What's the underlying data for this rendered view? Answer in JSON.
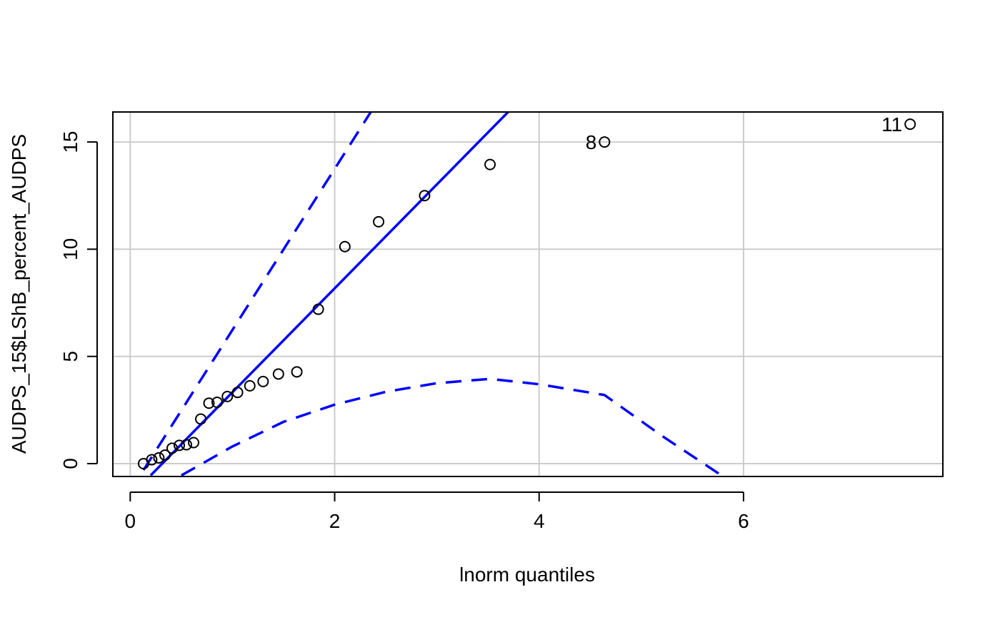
{
  "chart_data": {
    "type": "scatter",
    "title": "",
    "xlabel": "lnorm quantiles",
    "ylabel": "AUDPS_15$LShB_percent_AUDPS",
    "xlim": [
      -0.17,
      7.95
    ],
    "ylim": [
      -0.6,
      16.4
    ],
    "x_ticks": [
      0,
      2,
      4,
      6
    ],
    "y_ticks": [
      0,
      5,
      10,
      15
    ],
    "x_tick_labels": [
      "0",
      "2",
      "4",
      "6"
    ],
    "y_tick_labels": [
      "0",
      "5",
      "10",
      "15"
    ],
    "grid": true,
    "points": [
      {
        "x": 0.13,
        "y": 0.0
      },
      {
        "x": 0.21,
        "y": 0.18
      },
      {
        "x": 0.28,
        "y": 0.27
      },
      {
        "x": 0.34,
        "y": 0.4
      },
      {
        "x": 0.41,
        "y": 0.72
      },
      {
        "x": 0.48,
        "y": 0.85
      },
      {
        "x": 0.55,
        "y": 0.88
      },
      {
        "x": 0.62,
        "y": 0.98
      },
      {
        "x": 0.69,
        "y": 2.08
      },
      {
        "x": 0.77,
        "y": 2.82
      },
      {
        "x": 0.85,
        "y": 2.86
      },
      {
        "x": 0.95,
        "y": 3.13
      },
      {
        "x": 1.05,
        "y": 3.32
      },
      {
        "x": 1.17,
        "y": 3.63
      },
      {
        "x": 1.3,
        "y": 3.83
      },
      {
        "x": 1.45,
        "y": 4.18
      },
      {
        "x": 1.63,
        "y": 4.28
      },
      {
        "x": 1.84,
        "y": 7.2
      },
      {
        "x": 2.1,
        "y": 10.12
      },
      {
        "x": 2.43,
        "y": 11.28
      },
      {
        "x": 2.88,
        "y": 12.5
      },
      {
        "x": 3.52,
        "y": 13.95
      },
      {
        "x": 4.64,
        "y": 15.0,
        "label": "8"
      },
      {
        "x": 7.63,
        "y": 15.83,
        "label": "11"
      }
    ],
    "reference_line": {
      "color": "#0000ff",
      "style": "solid",
      "x": [
        0.2,
        3.8
      ],
      "y": [
        -0.55,
        16.9
      ]
    },
    "confidence_upper": {
      "color": "#0000ff",
      "style": "dashed",
      "x": [
        0.13,
        2.38
      ],
      "y": [
        -0.3,
        16.6
      ]
    },
    "confidence_lower": {
      "color": "#0000ff",
      "style": "dashed",
      "x": [
        0.5,
        1.0,
        1.5,
        2.0,
        2.5,
        3.0,
        3.52,
        4.0,
        4.64,
        5.2,
        5.8
      ],
      "y": [
        -0.55,
        0.8,
        1.95,
        2.75,
        3.35,
        3.75,
        3.95,
        3.7,
        3.2,
        1.3,
        -0.6
      ]
    },
    "point_labels": [
      "8",
      "11"
    ]
  }
}
